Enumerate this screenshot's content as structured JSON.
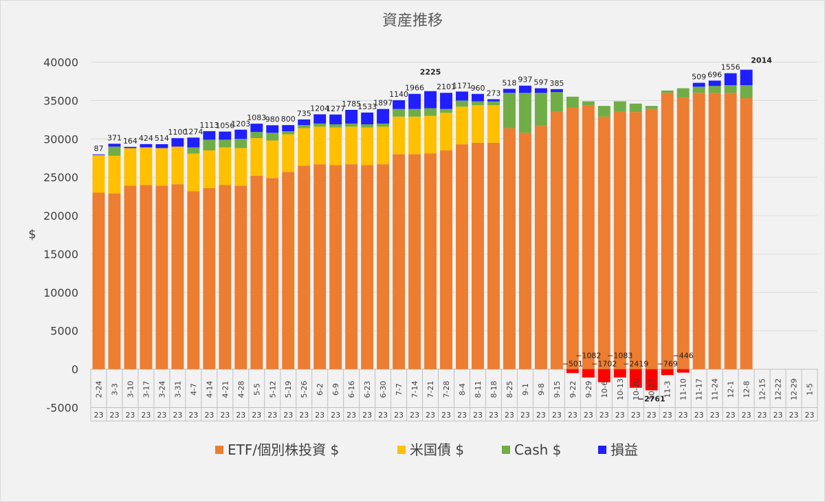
{
  "chart_data": {
    "type": "bar",
    "stacked": true,
    "title": "資産推移",
    "ylabel": "$",
    "xlabel": "",
    "ylim": [
      -5000,
      40000
    ],
    "yticks": [
      -5000,
      0,
      5000,
      10000,
      15000,
      20000,
      25000,
      30000,
      35000,
      40000
    ],
    "grid": true,
    "legend_position": "bottom",
    "year_label": "23",
    "categories": [
      "2-24",
      "3-3",
      "3-10",
      "3-17",
      "3-24",
      "3-31",
      "4-7",
      "4-14",
      "4-21",
      "4-28",
      "5-5",
      "5-12",
      "5-19",
      "5-26",
      "6-2",
      "6-9",
      "6-16",
      "6-23",
      "6-30",
      "7-7",
      "7-14",
      "7-21",
      "7-28",
      "8-4",
      "8-11",
      "8-18",
      "8-25",
      "9-1",
      "9-8",
      "9-15",
      "9-22",
      "9-29",
      "10-6",
      "10-13",
      "10-20",
      "10-27",
      "11-3",
      "11-10",
      "11-17",
      "11-24",
      "12-1",
      "12-8",
      "12-15",
      "12-22",
      "12-29",
      "1-5"
    ],
    "series": [
      {
        "name": "ETF/個別株投資 $",
        "color": "#ed7d31",
        "values": [
          23000,
          22900,
          23900,
          24000,
          23900,
          24100,
          23200,
          23600,
          24000,
          23900,
          25200,
          24900,
          25700,
          26500,
          26700,
          26600,
          26700,
          26600,
          26700,
          28000,
          28000,
          28100,
          28500,
          29300,
          29500,
          29500,
          31400,
          30800,
          31700,
          33600,
          34100,
          34400,
          32900,
          33600,
          33500,
          33900,
          36000,
          35400,
          36000,
          36000,
          36000,
          35300,
          null,
          null,
          null,
          null
        ]
      },
      {
        "name": "米国債 $",
        "color": "#ffc000",
        "values": [
          4900,
          4900,
          4900,
          4900,
          4900,
          4900,
          4900,
          4900,
          4900,
          4900,
          4900,
          4900,
          4900,
          4900,
          4900,
          4900,
          4900,
          4900,
          4900,
          4900,
          4900,
          4900,
          4900,
          4900,
          4900,
          4900,
          0,
          0,
          0,
          0,
          0,
          0,
          0,
          0,
          0,
          0,
          0,
          0,
          0,
          0,
          0,
          0,
          null,
          null,
          null,
          null
        ]
      },
      {
        "name": "Cash $",
        "color": "#70ad47",
        "values": [
          0,
          1200,
          0,
          0,
          0,
          0,
          800,
          1400,
          1000,
          1200,
          800,
          1000,
          400,
          400,
          400,
          400,
          400,
          400,
          400,
          1000,
          1000,
          1000,
          500,
          800,
          500,
          500,
          4600,
          5200,
          4300,
          2500,
          1400,
          500,
          1400,
          1300,
          1100,
          400,
          300,
          1200,
          800,
          900,
          1000,
          1700,
          null,
          null,
          null,
          null
        ]
      },
      {
        "name": "損益",
        "color": "#1f1fff",
        "values": [
          87,
          371,
          164,
          424,
          514,
          1100,
          1274,
          1113,
          1056,
          1203,
          1083,
          980,
          800,
          735,
          1204,
          1277,
          1785,
          1533,
          1897,
          1140,
          1966,
          2225,
          2101,
          1171,
          960,
          273,
          518,
          937,
          597,
          385,
          -501,
          -1082,
          -1702,
          -1083,
          -2419,
          -2761,
          -769,
          -446,
          509,
          696,
          1556,
          2014,
          null,
          null,
          null,
          null
        ]
      }
    ],
    "data_labels": [
      "87",
      "371",
      "164",
      "424",
      "514",
      "1100",
      "1274",
      "1113",
      "1056",
      "1203",
      "1083",
      "980",
      "800",
      "735",
      "1204",
      "1277",
      "1785",
      "1533",
      "1897",
      "1140",
      "1966",
      "2225",
      "2101",
      "1171",
      "960",
      "273",
      "518",
      "937",
      "597",
      "385",
      "−501",
      "−1082",
      "−1702",
      "−1083",
      "−2419",
      "−2761",
      "−769",
      "−446",
      "509",
      "696",
      "1556",
      "2014",
      "",
      "",
      "",
      ""
    ],
    "highlighted_labels": [
      {
        "index": 21,
        "text": "2225",
        "color": "#00b050"
      },
      {
        "index": 41,
        "text": "2014",
        "color": "#00b050"
      },
      {
        "index": 35,
        "text": "−2761",
        "color": "#ff0000"
      }
    ],
    "negative_color": "#ff0000"
  }
}
